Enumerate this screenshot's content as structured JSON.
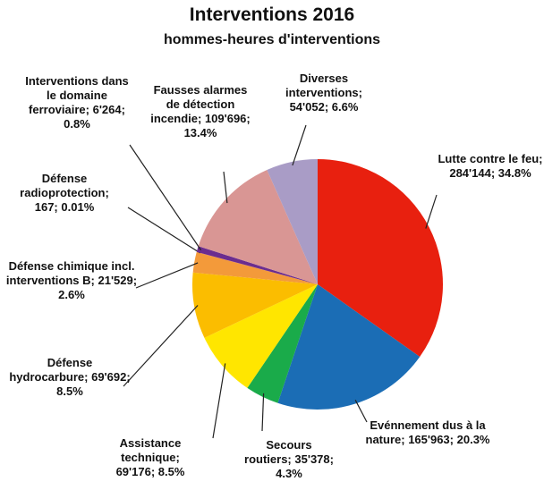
{
  "chart_data": {
    "type": "pie",
    "title": "Interventions 2016",
    "subtitle": "hommes-heures d'interventions",
    "categories": [
      "Lutte contre le feu;",
      "Evénnement dus à la nature;",
      "Secours routiers;",
      "Assistance technique;",
      "Défense hydrocarbure;",
      "Défense chimique incl. interventions B;",
      "Défense radioprotection;",
      "Interventions dans le domaine ferroviaire;",
      "Fausses alarmes de détection incendie;",
      "Diverses interventions;"
    ],
    "values": [
      284144,
      165963,
      35378,
      69176,
      69692,
      21529,
      167,
      6264,
      109696,
      54052
    ],
    "value_labels": [
      "284'144;",
      "165'963;",
      "35'378;",
      "69'176;",
      "69'692;",
      "21'529;",
      "167;",
      "6'264;",
      "109'696;",
      "54'052;"
    ],
    "percent_labels": [
      "34.8%",
      "20.3%",
      "4.3%",
      "8.5%",
      "8.5%",
      "2.6%",
      "0.01%",
      "0.8%",
      "13.4%",
      "6.6%"
    ],
    "colors": [
      "#e8200f",
      "#1b6db5",
      "#1aab4a",
      "#ffe600",
      "#fbbd00",
      "#f39a3a",
      "#e06030",
      "#6b2d8f",
      "#d99694",
      "#a99cc6"
    ]
  }
}
